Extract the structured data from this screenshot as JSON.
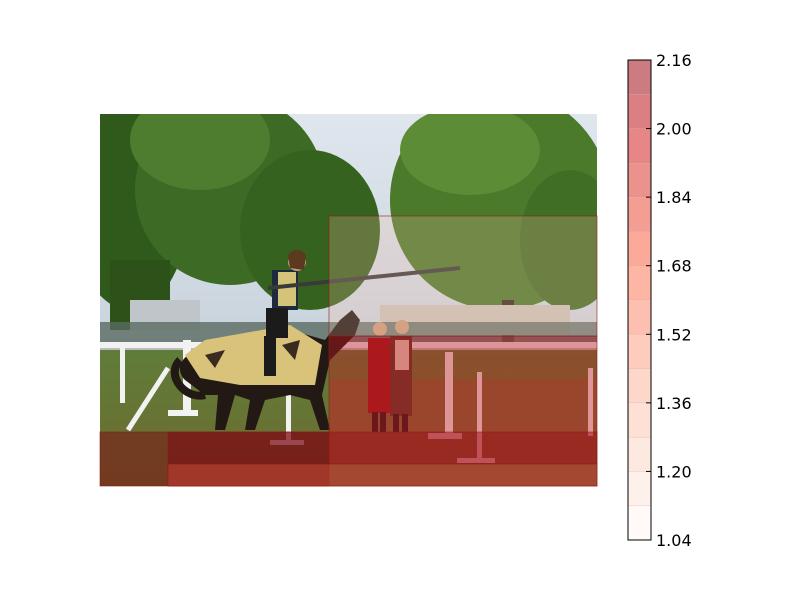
{
  "chart_data": {
    "type": "heatmap",
    "title": "",
    "xlabel": "",
    "ylabel": "",
    "description_scene": "photo of a mounted jouster with lance, overlaid by a translucent red heatmap grid",
    "colorbar": {
      "vmin": 1.04,
      "vmax": 2.16,
      "levels": [
        1.04,
        1.12,
        1.2,
        1.28,
        1.36,
        1.44,
        1.52,
        1.6,
        1.68,
        1.76,
        1.84,
        1.92,
        2.0,
        2.08,
        2.16
      ],
      "tick_labels": [
        "2.16",
        "2.00",
        "1.84",
        "1.68",
        "1.52",
        "1.36",
        "1.20",
        "1.04"
      ],
      "tick_values": [
        2.16,
        2.0,
        1.84,
        1.68,
        1.52,
        1.36,
        1.2,
        1.04
      ],
      "colormap": "Reds",
      "alpha": 0.5
    },
    "regions": [
      {
        "name": "lower-band",
        "value": 2.1
      },
      {
        "name": "right-mid",
        "value": 1.9
      },
      {
        "name": "bottom-right",
        "value": 1.6
      },
      {
        "name": "upper-right-box",
        "value": 1.3
      }
    ]
  }
}
